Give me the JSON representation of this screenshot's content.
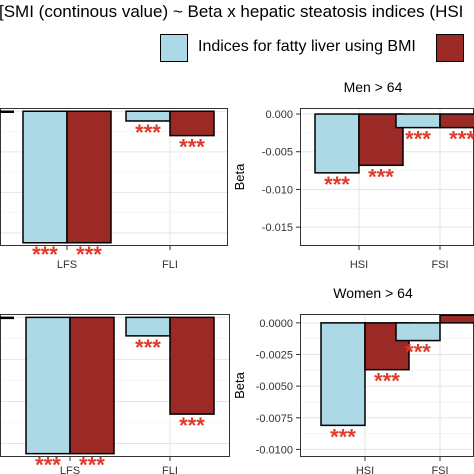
{
  "title": "■ [SMI (continous value) ~ Beta x hepatic steatosis indices (HSI",
  "colors": {
    "bmi": "#add8e6",
    "other": "#9b2a26",
    "stars": "#e03a2b",
    "grid": "#e5e5e5"
  },
  "chart_data": [
    {
      "type": "bar",
      "panel": "men-under-64",
      "title": "",
      "categories": [
        "LFS",
        "FLI"
      ],
      "series": [
        {
          "name": "Indices for fatty liver using BMI",
          "values": [
            -0.0162,
            -0.0012
          ]
        },
        {
          "values": [
            -0.0162,
            -0.003
          ]
        }
      ],
      "significance": [
        [
          "***",
          "***"
        ],
        [
          "***",
          "***"
        ]
      ],
      "grid": true
    },
    {
      "type": "bar",
      "panel": "men-over-64",
      "title": "Men > 64",
      "categories": [
        "HSI",
        "FSI"
      ],
      "series": [
        {
          "name": "Indices for fatty liver using BMI",
          "values": [
            -0.0078,
            -0.0018
          ]
        },
        {
          "values": [
            -0.0068,
            -0.0018
          ]
        }
      ],
      "significance": [
        [
          "***",
          "***"
        ],
        [
          "***",
          "***"
        ]
      ],
      "ylabel": "Beta",
      "yticks": [
        0.0,
        -0.005,
        -0.01,
        -0.015
      ],
      "yticklabels": [
        "0.000",
        "-0.005",
        "-0.010",
        "-0.015"
      ],
      "ylim": [
        -0.0175,
        0.0008
      ],
      "grid": true
    },
    {
      "type": "bar",
      "panel": "women-under-64",
      "title": "",
      "categories": [
        "LFS",
        "FLI"
      ],
      "series": [
        {
          "name": "Indices for fatty liver using BMI",
          "values": [
            -0.0162,
            -0.0022
          ]
        },
        {
          "values": [
            -0.0162,
            -0.0115
          ]
        }
      ],
      "significance": [
        [
          "***",
          "***"
        ],
        [
          "***",
          "***"
        ]
      ],
      "grid": true
    },
    {
      "type": "bar",
      "panel": "women-over-64",
      "title": "Women > 64",
      "categories": [
        "HSI",
        "FSI"
      ],
      "series": [
        {
          "name": "Indices for fatty liver using BMI",
          "values": [
            -0.0081,
            -0.0014
          ]
        },
        {
          "values": [
            -0.0037,
            0.0006
          ]
        }
      ],
      "significance": [
        [
          "***",
          "***"
        ],
        [
          "***",
          ""
        ]
      ],
      "ylabel": "Beta",
      "yticks": [
        0.0,
        -0.0025,
        -0.005,
        -0.0075,
        -0.01
      ],
      "yticklabels": [
        "0.0000",
        "-0.0025",
        "-0.0050",
        "-0.0075",
        "-0.0100"
      ],
      "ylim": [
        -0.0106,
        0.0007
      ],
      "grid": true
    }
  ],
  "legend": {
    "items": [
      {
        "label": "Indices for fatty liver using BMI",
        "color": "#add8e6"
      },
      {
        "label": "",
        "color": "#9b2a26"
      }
    ]
  }
}
